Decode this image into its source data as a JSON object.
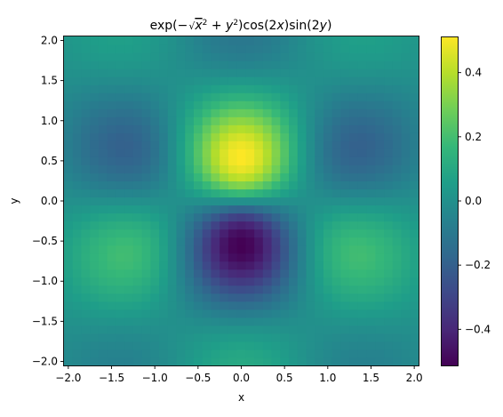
{
  "chart_data": {
    "type": "heatmap",
    "title": {
      "pre": "exp(−",
      "radicand_x": "x",
      "radicand_plus": " + ",
      "radicand_y": "y",
      "sup": "2",
      "close": ")",
      "cos": "cos(2",
      "cos_var": "x",
      "mid": ")sin(2",
      "sin_var": "y",
      "end": ")"
    },
    "function": "exp(-sqrt(x^2+y^2))*cos(2x)*sin(2y)",
    "xlabel": "x",
    "ylabel": "y",
    "xlim": [
      -2.05,
      2.05
    ],
    "ylim": [
      -2.05,
      2.05
    ],
    "grid": {
      "nx": 41,
      "ny": 41,
      "x_start": -2.0,
      "x_end": 2.0,
      "y_start": -2.0,
      "y_end": 2.0,
      "shading": "nearest"
    },
    "x_ticks": [
      -2.0,
      -1.5,
      -1.0,
      -0.5,
      0.0,
      0.5,
      1.0,
      1.5,
      2.0
    ],
    "x_tick_labels": [
      "−2.0",
      "−1.5",
      "−1.0",
      "−0.5",
      "0.0",
      "0.5",
      "1.0",
      "1.5",
      "2.0"
    ],
    "y_ticks": [
      -2.0,
      -1.5,
      -1.0,
      -0.5,
      0.0,
      0.5,
      1.0,
      1.5,
      2.0
    ],
    "y_tick_labels": [
      "−2.0",
      "−1.5",
      "−1.0",
      "−0.5",
      "0.0",
      "0.5",
      "1.0",
      "1.5",
      "2.0"
    ],
    "colorbar": {
      "colormap": "viridis",
      "vmin": -0.5127,
      "vmax": 0.5127,
      "ticks": [
        -0.4,
        -0.2,
        0.0,
        0.2,
        0.4
      ],
      "tick_labels": [
        "−0.4",
        "−0.2",
        "0.0",
        "0.2",
        "0.4"
      ]
    },
    "colormap_stops": [
      "#440154",
      "#482878",
      "#3e4989",
      "#31688e",
      "#26828e",
      "#1f9e89",
      "#35b779",
      "#6ece58",
      "#b5de2b",
      "#fde725"
    ]
  }
}
